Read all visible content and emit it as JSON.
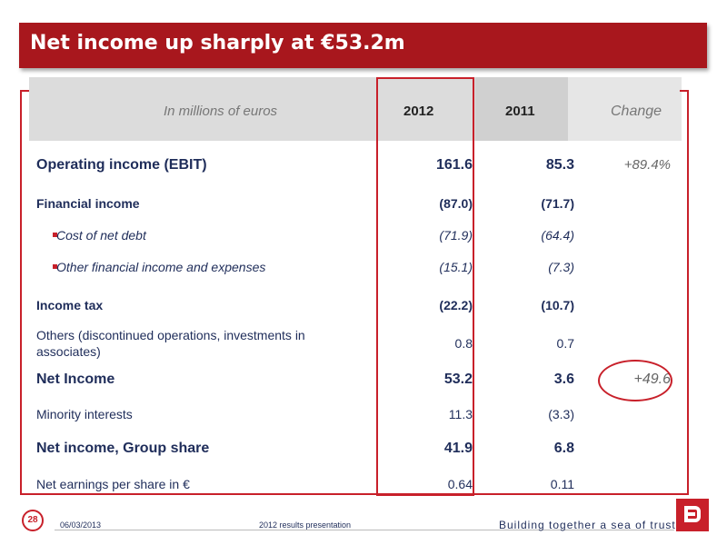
{
  "title": "Net income up sharply at €53.2m",
  "table": {
    "headers": {
      "units": "In millions of euros",
      "y2012": "2012",
      "y2011": "2011",
      "change": "Change"
    },
    "rows": [
      {
        "label": "Operating income (EBIT)",
        "v2012": "161.6",
        "v2011": "85.3",
        "change": "+89.4%"
      },
      {
        "label": "Financial income",
        "v2012": "(87.0)",
        "v2011": "(71.7)",
        "change": ""
      },
      {
        "label": "Cost of net debt",
        "v2012": "(71.9)",
        "v2011": "(64.4)",
        "change": ""
      },
      {
        "label": "Other financial income and expenses",
        "v2012": "(15.1)",
        "v2011": "(7.3)",
        "change": ""
      },
      {
        "label": "Income tax",
        "v2012": "(22.2)",
        "v2011": "(10.7)",
        "change": ""
      },
      {
        "label": "Others (discontinued operations, investments in associates)",
        "v2012": "0.8",
        "v2011": "0.7",
        "change": ""
      },
      {
        "label": "Net Income",
        "v2012": "53.2",
        "v2011": "3.6",
        "change": "+49.6"
      },
      {
        "label": "Minority interests",
        "v2012": "11.3",
        "v2011": "(3.3)",
        "change": ""
      },
      {
        "label": "Net income, Group share",
        "v2012": "41.9",
        "v2011": "6.8",
        "change": ""
      },
      {
        "label": "Net earnings per share in €",
        "v2012": "0.64",
        "v2011": "0.11",
        "change": ""
      }
    ]
  },
  "footer": {
    "page_number": "28",
    "date": "06/03/2013",
    "presentation": "2012 results presentation",
    "tagline": "Building together a sea of trust"
  },
  "colors": {
    "brand_red": "#a8171d",
    "text_navy": "#1f2d5a"
  }
}
